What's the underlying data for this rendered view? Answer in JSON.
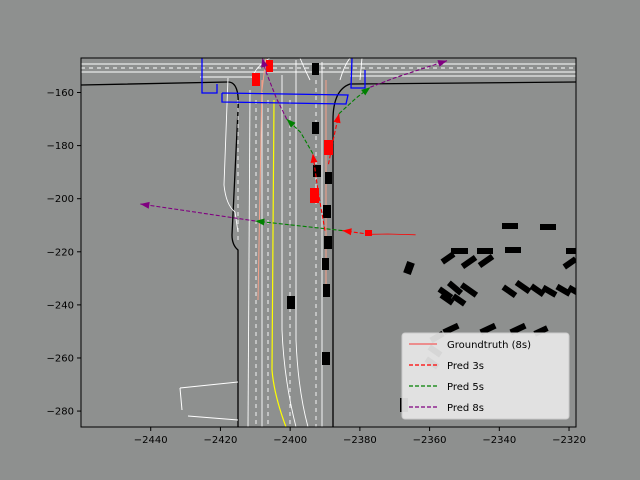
{
  "chart_data": {
    "type": "line",
    "xlim": [
      -2460,
      -2318
    ],
    "ylim": [
      -286,
      -147
    ],
    "xticks": [
      -2440,
      -2420,
      -2400,
      -2380,
      -2360,
      -2340,
      -2320
    ],
    "yticks": [
      -160,
      -180,
      -200,
      -220,
      -240,
      -260,
      -280
    ],
    "xtick_labels": [
      "−2440",
      "−2420",
      "−2400",
      "−2380",
      "−2360",
      "−2340",
      "−2320"
    ],
    "ytick_labels": [
      "−160",
      "−180",
      "−200",
      "−220",
      "−240",
      "−260",
      "−280"
    ],
    "legend_position": "bottom-right",
    "legend": [
      {
        "label": "Groundtruth (8s)",
        "color": "#ff0000",
        "style": "solid"
      },
      {
        "label": "Pred 3s",
        "color": "#ff0000",
        "style": "dashed"
      },
      {
        "label": "Pred 5s",
        "color": "#008000",
        "style": "dashed"
      },
      {
        "label": "Pred 8s",
        "color": "#800080",
        "style": "dashed"
      }
    ],
    "series": [
      {
        "name": "Groundtruth (8s)",
        "color": "#ff0000",
        "style": "solid",
        "points": [
          [
            -2377.2,
            -213.4
          ],
          [
            -2372,
            -213.3
          ],
          [
            -2367,
            -213.5
          ],
          [
            -2364,
            -213.6
          ]
        ]
      },
      {
        "name": "Pred 3s",
        "color": "#ff0000",
        "style": "dashed",
        "points": [
          [
            -2377.2,
            -213.4
          ],
          [
            -2385,
            -212
          ]
        ]
      },
      {
        "name": "Pred 5s",
        "color": "#008000",
        "style": "dashed",
        "points": [
          [
            -2385,
            -212
          ],
          [
            -2410,
            -208.4
          ]
        ]
      },
      {
        "name": "Pred 8s",
        "color": "#800080",
        "style": "dashed",
        "points": [
          [
            -2410,
            -208.4
          ],
          [
            -2443,
            -202
          ]
        ]
      },
      {
        "name": "Pred 3s",
        "color": "#ff0000",
        "style": "dashed",
        "points": [
          [
            -2390,
            -212
          ],
          [
            -2392,
            -197
          ],
          [
            -2393.5,
            -183
          ]
        ]
      },
      {
        "name": "Pred 5s",
        "color": "#008000",
        "style": "dashed",
        "points": [
          [
            -2393.5,
            -183
          ],
          [
            -2397,
            -175
          ],
          [
            -2401,
            -170
          ]
        ]
      },
      {
        "name": "Pred 8s",
        "color": "#800080",
        "style": "dashed",
        "points": [
          [
            -2401,
            -170
          ],
          [
            -2404,
            -162
          ],
          [
            -2407,
            -152
          ],
          [
            -2408,
            -147
          ]
        ]
      },
      {
        "name": "Pred 3s",
        "color": "#ff0000",
        "style": "dashed",
        "points": [
          [
            -2389,
            -187
          ],
          [
            -2387.5,
            -177
          ],
          [
            -2386,
            -168
          ]
        ]
      },
      {
        "name": "Pred 5s",
        "color": "#008000",
        "style": "dashed",
        "points": [
          [
            -2386,
            -168
          ],
          [
            -2381,
            -162
          ],
          [
            -2377,
            -158
          ]
        ]
      },
      {
        "name": "Pred 8s",
        "color": "#800080",
        "style": "dashed",
        "points": [
          [
            -2377,
            -158
          ],
          [
            -2370,
            -154.5
          ],
          [
            -2362,
            -151
          ],
          [
            -2355,
            -148
          ]
        ]
      }
    ]
  }
}
